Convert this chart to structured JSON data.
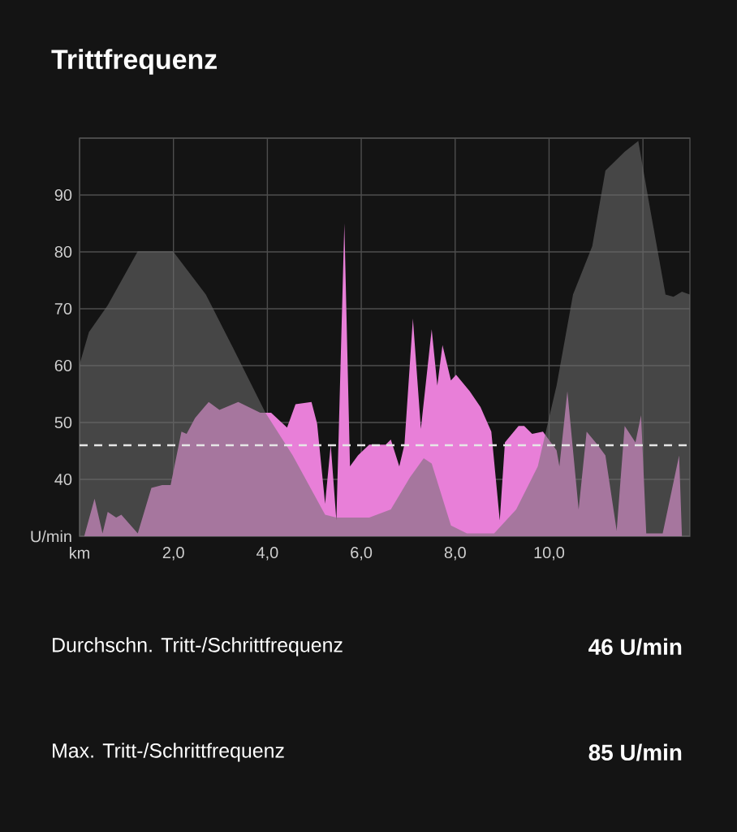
{
  "chart_data": {
    "type": "area",
    "title": "Trittfrequenz",
    "annotations": [
      "Durchschn. Tritt-/Schrittfrequenz",
      "46 U/min",
      "Max. Tritt-/Schrittfrequenz",
      "85 U/min"
    ],
    "series": [
      {
        "color": "#e87fd8",
        "x": [
          0.1,
          0.32,
          0.49,
          0.6,
          0.78,
          0.89,
          1.24,
          1.53,
          1.76,
          1.94,
          2.17,
          2.28,
          2.46,
          2.75,
          2.98,
          3.38,
          3.85,
          4.08,
          4.42,
          4.6,
          4.94,
          5.06,
          5.23,
          5.35,
          5.47,
          5.64,
          5.76,
          5.93,
          6.17,
          6.52,
          6.63,
          6.81,
          6.92,
          7.1,
          7.27,
          7.5,
          7.62,
          7.73,
          7.91,
          8.02,
          8.31,
          8.54,
          8.77,
          8.95,
          9.06,
          9.35,
          9.47,
          9.64,
          9.87,
          10.16,
          10.22,
          10.39,
          10.63,
          10.8,
          11.03,
          11.2,
          11.44,
          11.61,
          11.84,
          11.96,
          12.07,
          12.42,
          12.77,
          12.83
        ],
        "values": [
          30,
          36.6,
          30.5,
          34.3,
          33.3,
          33.8,
          30.5,
          38.5,
          39,
          39,
          48.4,
          48,
          50.8,
          53.6,
          52.2,
          53.6,
          51.7,
          51.7,
          49.1,
          53.2,
          53.6,
          49.8,
          35.7,
          46.1,
          32.8,
          85,
          42.3,
          44.2,
          46.1,
          46.1,
          47,
          42.3,
          46.1,
          68.3,
          48.9,
          66.4,
          56.5,
          63.6,
          57.4,
          58.4,
          55.5,
          52.7,
          48.4,
          32.8,
          46.5,
          49.4,
          49.4,
          48,
          48.4,
          45.1,
          42.3,
          55.5,
          34.7,
          48.4,
          46.1,
          44.2,
          31,
          49.4,
          46.5,
          51.3,
          30.5,
          30.5,
          44.2,
          30
        ]
      },
      {
        "color": "#707070",
        "x": [
          0,
          0.2,
          0.6,
          1.24,
          1.99,
          2.69,
          3.27,
          3.96,
          4.54,
          5.23,
          5.47,
          6.17,
          6.63,
          7.04,
          7.33,
          7.5,
          7.91,
          8.25,
          8.83,
          9.3,
          9.76,
          10.16,
          10.51,
          10.92,
          11.2,
          11.61,
          11.9,
          12.13,
          12.48,
          12.65,
          12.83,
          13.0
        ],
        "values": [
          60.2,
          65.9,
          70.6,
          80.1,
          80.1,
          72.5,
          63.1,
          51.7,
          44.2,
          33.8,
          33.3,
          33.3,
          34.7,
          40.4,
          43.7,
          42.8,
          31.9,
          30.5,
          30.5,
          34.7,
          42.3,
          56.5,
          72.5,
          81,
          94.3,
          97.6,
          99.5,
          88.6,
          72.5,
          72.1,
          73,
          72.5
        ]
      }
    ],
    "xlim": [
      0,
      13
    ],
    "xticks": [
      {
        "value": 0,
        "label": "km"
      },
      {
        "value": 2,
        "label": "2,0"
      },
      {
        "value": 4,
        "label": "4,0"
      },
      {
        "value": 6,
        "label": "6,0"
      },
      {
        "value": 8,
        "label": "8,0"
      },
      {
        "value": 10,
        "label": "10,0"
      },
      {
        "value": 12,
        "label": null
      }
    ],
    "ylim": [
      30,
      100
    ],
    "yticks": [
      {
        "value": 30,
        "label": "U/min"
      },
      40,
      50,
      60,
      70,
      80,
      90,
      {
        "value": 100,
        "label": null
      }
    ],
    "grid": true,
    "ref_lines": [
      {
        "axis": "y",
        "value": 46,
        "color": "#e6e6e6",
        "line_style": "dashed"
      }
    ]
  }
}
